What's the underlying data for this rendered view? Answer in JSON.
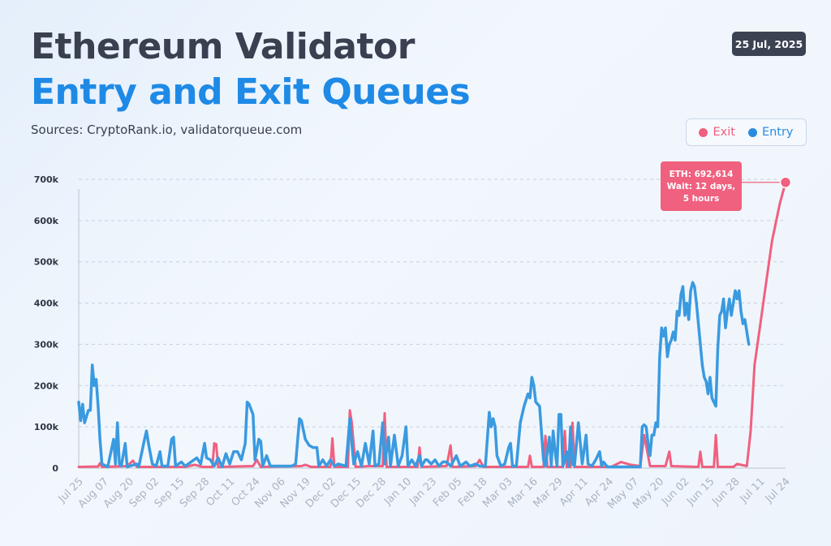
{
  "header": {
    "title_line1": "Ethereum Validator",
    "title_line2": "Entry and Exit Queues",
    "sources": "Sources: CryptoRank.io, validatorqueue.com",
    "date": "25 Jul, 2025"
  },
  "colors": {
    "exit": "#f0607f",
    "entry": "#3a9ae0",
    "title_dark": "#3a4050",
    "title_blue": "#1f8ae6"
  },
  "chart_data": {
    "type": "line",
    "title": "Ethereum Validator Entry and Exit Queues",
    "legend": {
      "placement": "top-right",
      "entries": [
        "Exit",
        "Entry"
      ]
    },
    "grid": true,
    "ylim": [
      0,
      700000
    ],
    "y_ticks": [
      0,
      100000,
      200000,
      300000,
      400000,
      500000,
      600000,
      700000
    ],
    "y_tick_labels": [
      "0",
      "100k",
      "200k",
      "300k",
      "400k",
      "500k",
      "600k",
      "700k"
    ],
    "x_tick_labels": [
      "Jul 25",
      "Aug 07",
      "Aug 20",
      "Sep 02",
      "Sep 15",
      "Sep 28",
      "Oct 11",
      "Oct 24",
      "Nov 06",
      "Nov 19",
      "Dec 02",
      "Dec 15",
      "Dec 28",
      "Jan 10",
      "Jan 23",
      "Feb 05",
      "Feb 18",
      "Mar 03",
      "Mar 16",
      "Mar 29",
      "Apr 11",
      "Apr 24",
      "May 07",
      "May 20",
      "Jun 02",
      "Jun 15",
      "Jun 28",
      "Jul 11",
      "Jul 24"
    ],
    "x_range_days": [
      0,
      365
    ],
    "annotation": {
      "lines": [
        "ETH: 692,614",
        "Wait: 12 days,",
        "5 hours"
      ],
      "day": 365,
      "value": 692614
    },
    "series": [
      {
        "name": "Exit",
        "points": [
          [
            0,
            3000
          ],
          [
            10,
            4000
          ],
          [
            11,
            12000
          ],
          [
            12,
            3000
          ],
          [
            25,
            5000
          ],
          [
            28,
            18000
          ],
          [
            30,
            3000
          ],
          [
            55,
            3000
          ],
          [
            60,
            8000
          ],
          [
            64,
            3000
          ],
          [
            69,
            3000
          ],
          [
            70,
            60000
          ],
          [
            71,
            58000
          ],
          [
            72,
            3000
          ],
          [
            90,
            5000
          ],
          [
            92,
            20000
          ],
          [
            94,
            3000
          ],
          [
            115,
            5000
          ],
          [
            117,
            8000
          ],
          [
            120,
            3000
          ],
          [
            130,
            3000
          ],
          [
            131,
            72000
          ],
          [
            132,
            3000
          ],
          [
            139,
            3000
          ],
          [
            140,
            140000
          ],
          [
            141,
            110000
          ],
          [
            143,
            3000
          ],
          [
            150,
            5000
          ],
          [
            157,
            5000
          ],
          [
            158,
            133000
          ],
          [
            159,
            3000
          ],
          [
            175,
            3000
          ],
          [
            176,
            50000
          ],
          [
            177,
            3000
          ],
          [
            190,
            5000
          ],
          [
            192,
            55000
          ],
          [
            193,
            3000
          ],
          [
            205,
            5000
          ],
          [
            207,
            20000
          ],
          [
            209,
            3000
          ],
          [
            232,
            3000
          ],
          [
            233,
            30000
          ],
          [
            234,
            3000
          ],
          [
            240,
            3000
          ],
          [
            241,
            78000
          ],
          [
            242,
            3000
          ],
          [
            250,
            3000
          ],
          [
            251,
            90000
          ],
          [
            252,
            3000
          ],
          [
            254,
            3000
          ],
          [
            255,
            110000
          ],
          [
            256,
            3000
          ],
          [
            275,
            3000
          ],
          [
            280,
            15000
          ],
          [
            285,
            8000
          ],
          [
            290,
            5000
          ],
          [
            292,
            80000
          ],
          [
            295,
            5000
          ],
          [
            303,
            5000
          ],
          [
            305,
            40000
          ],
          [
            306,
            5000
          ],
          [
            320,
            3000
          ],
          [
            321,
            40000
          ],
          [
            322,
            3000
          ],
          [
            328,
            3000
          ],
          [
            329,
            80000
          ],
          [
            330,
            3000
          ],
          [
            338,
            3000
          ],
          [
            340,
            10000
          ],
          [
            345,
            5000
          ],
          [
            347,
            90000
          ],
          [
            349,
            250000
          ],
          [
            352,
            350000
          ],
          [
            355,
            450000
          ],
          [
            358,
            550000
          ],
          [
            362,
            640000
          ],
          [
            365,
            692614
          ]
        ]
      },
      {
        "name": "Entry",
        "points": [
          [
            0,
            160000
          ],
          [
            1,
            115000
          ],
          [
            2,
            155000
          ],
          [
            3,
            110000
          ],
          [
            5,
            140000
          ],
          [
            6,
            140000
          ],
          [
            7,
            250000
          ],
          [
            8,
            200000
          ],
          [
            9,
            215000
          ],
          [
            10,
            150000
          ],
          [
            11,
            70000
          ],
          [
            12,
            10000
          ],
          [
            15,
            3000
          ],
          [
            18,
            70000
          ],
          [
            19,
            10000
          ],
          [
            20,
            110000
          ],
          [
            21,
            10000
          ],
          [
            22,
            5000
          ],
          [
            24,
            60000
          ],
          [
            25,
            3000
          ],
          [
            30,
            10000
          ],
          [
            31,
            3000
          ],
          [
            34,
            70000
          ],
          [
            35,
            90000
          ],
          [
            36,
            60000
          ],
          [
            38,
            10000
          ],
          [
            40,
            5000
          ],
          [
            42,
            40000
          ],
          [
            43,
            5000
          ],
          [
            46,
            5000
          ],
          [
            48,
            70000
          ],
          [
            49,
            75000
          ],
          [
            50,
            5000
          ],
          [
            53,
            15000
          ],
          [
            55,
            5000
          ],
          [
            58,
            15000
          ],
          [
            61,
            25000
          ],
          [
            63,
            10000
          ],
          [
            65,
            60000
          ],
          [
            66,
            25000
          ],
          [
            68,
            20000
          ],
          [
            70,
            5000
          ],
          [
            72,
            25000
          ],
          [
            74,
            3000
          ],
          [
            76,
            35000
          ],
          [
            78,
            10000
          ],
          [
            80,
            40000
          ],
          [
            82,
            40000
          ],
          [
            84,
            20000
          ],
          [
            86,
            60000
          ],
          [
            87,
            160000
          ],
          [
            88,
            155000
          ],
          [
            90,
            130000
          ],
          [
            91,
            20000
          ],
          [
            93,
            70000
          ],
          [
            94,
            65000
          ],
          [
            95,
            5000
          ],
          [
            97,
            30000
          ],
          [
            99,
            5000
          ],
          [
            102,
            5000
          ],
          [
            104,
            5000
          ],
          [
            106,
            5000
          ],
          [
            108,
            5000
          ],
          [
            110,
            5000
          ],
          [
            112,
            10000
          ],
          [
            114,
            120000
          ],
          [
            115,
            115000
          ],
          [
            117,
            70000
          ],
          [
            119,
            55000
          ],
          [
            121,
            50000
          ],
          [
            123,
            50000
          ],
          [
            124,
            5000
          ],
          [
            126,
            20000
          ],
          [
            128,
            5000
          ],
          [
            130,
            20000
          ],
          [
            132,
            5000
          ],
          [
            134,
            10000
          ],
          [
            138,
            5000
          ],
          [
            140,
            120000
          ],
          [
            141,
            60000
          ],
          [
            142,
            10000
          ],
          [
            144,
            40000
          ],
          [
            146,
            5000
          ],
          [
            148,
            60000
          ],
          [
            150,
            10000
          ],
          [
            152,
            90000
          ],
          [
            153,
            5000
          ],
          [
            155,
            10000
          ],
          [
            157,
            110000
          ],
          [
            158,
            10000
          ],
          [
            160,
            75000
          ],
          [
            161,
            5000
          ],
          [
            163,
            80000
          ],
          [
            165,
            5000
          ],
          [
            167,
            30000
          ],
          [
            169,
            100000
          ],
          [
            170,
            5000
          ],
          [
            172,
            20000
          ],
          [
            174,
            5000
          ],
          [
            176,
            30000
          ],
          [
            177,
            5000
          ],
          [
            179,
            20000
          ],
          [
            180,
            20000
          ],
          [
            182,
            10000
          ],
          [
            184,
            20000
          ],
          [
            186,
            5000
          ],
          [
            188,
            15000
          ],
          [
            190,
            15000
          ],
          [
            192,
            5000
          ],
          [
            195,
            30000
          ],
          [
            197,
            5000
          ],
          [
            200,
            15000
          ],
          [
            202,
            5000
          ],
          [
            205,
            10000
          ],
          [
            207,
            5000
          ],
          [
            210,
            5000
          ],
          [
            212,
            135000
          ],
          [
            213,
            100000
          ],
          [
            214,
            120000
          ],
          [
            215,
            100000
          ],
          [
            216,
            30000
          ],
          [
            218,
            5000
          ],
          [
            220,
            10000
          ],
          [
            222,
            50000
          ],
          [
            223,
            60000
          ],
          [
            224,
            5000
          ],
          [
            226,
            5000
          ],
          [
            228,
            110000
          ],
          [
            230,
            150000
          ],
          [
            232,
            180000
          ],
          [
            233,
            170000
          ],
          [
            234,
            220000
          ],
          [
            235,
            200000
          ],
          [
            236,
            160000
          ],
          [
            238,
            150000
          ],
          [
            240,
            20000
          ],
          [
            241,
            5000
          ],
          [
            243,
            75000
          ],
          [
            244,
            5000
          ],
          [
            245,
            90000
          ],
          [
            246,
            40000
          ],
          [
            247,
            5000
          ],
          [
            248,
            130000
          ],
          [
            249,
            130000
          ],
          [
            250,
            5000
          ],
          [
            252,
            40000
          ],
          [
            253,
            5000
          ],
          [
            254,
            100000
          ],
          [
            255,
            10000
          ],
          [
            256,
            5000
          ],
          [
            258,
            110000
          ],
          [
            259,
            60000
          ],
          [
            260,
            10000
          ],
          [
            262,
            80000
          ],
          [
            263,
            10000
          ],
          [
            265,
            5000
          ],
          [
            267,
            20000
          ],
          [
            269,
            40000
          ],
          [
            270,
            5000
          ],
          [
            271,
            15000
          ],
          [
            273,
            3000
          ],
          [
            280,
            3000
          ],
          [
            285,
            3000
          ],
          [
            290,
            3000
          ],
          [
            291,
            100000
          ],
          [
            292,
            105000
          ],
          [
            293,
            100000
          ],
          [
            294,
            60000
          ],
          [
            295,
            30000
          ],
          [
            296,
            80000
          ],
          [
            297,
            80000
          ],
          [
            298,
            110000
          ],
          [
            299,
            100000
          ],
          [
            300,
            270000
          ],
          [
            301,
            340000
          ],
          [
            302,
            320000
          ],
          [
            303,
            340000
          ],
          [
            304,
            270000
          ],
          [
            305,
            300000
          ],
          [
            306,
            310000
          ],
          [
            307,
            330000
          ],
          [
            308,
            310000
          ],
          [
            309,
            380000
          ],
          [
            310,
            370000
          ],
          [
            311,
            420000
          ],
          [
            312,
            440000
          ],
          [
            313,
            370000
          ],
          [
            314,
            400000
          ],
          [
            315,
            360000
          ],
          [
            316,
            430000
          ],
          [
            317,
            450000
          ],
          [
            318,
            440000
          ],
          [
            319,
            400000
          ],
          [
            320,
            350000
          ],
          [
            321,
            300000
          ],
          [
            322,
            250000
          ],
          [
            323,
            220000
          ],
          [
            324,
            210000
          ],
          [
            325,
            180000
          ],
          [
            326,
            220000
          ],
          [
            327,
            170000
          ],
          [
            328,
            160000
          ],
          [
            329,
            150000
          ],
          [
            330,
            290000
          ],
          [
            331,
            370000
          ],
          [
            332,
            380000
          ],
          [
            333,
            410000
          ],
          [
            334,
            340000
          ],
          [
            335,
            380000
          ],
          [
            336,
            410000
          ],
          [
            337,
            370000
          ],
          [
            338,
            400000
          ],
          [
            339,
            430000
          ],
          [
            340,
            410000
          ],
          [
            341,
            430000
          ],
          [
            342,
            380000
          ],
          [
            343,
            350000
          ],
          [
            344,
            360000
          ],
          [
            345,
            330000
          ],
          [
            346,
            300000
          ]
        ]
      }
    ]
  }
}
